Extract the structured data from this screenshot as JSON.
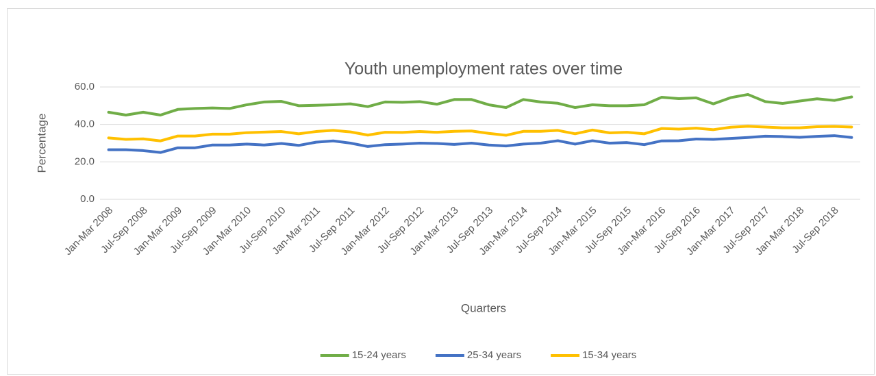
{
  "chart_data": {
    "type": "line",
    "title": "Youth unemployment rates over time",
    "x_label": "Quarters",
    "y_label": "Percentage",
    "categories": [
      "Jan-Mar 2008",
      null,
      "Jul-Sep 2008",
      null,
      "Jan-Mar 2009",
      null,
      "Jul-Sep 2009",
      null,
      "Jan-Mar 2010",
      null,
      "Jul-Sep 2010",
      null,
      "Jan-Mar 2011",
      null,
      "Jul-Sep 2011",
      null,
      "Jan-Mar 2012",
      null,
      "Jul-Sep 2012",
      null,
      "Jan-Mar 2013",
      null,
      "Jul-Sep 2013",
      null,
      "Jan-Mar 2014",
      null,
      "Jul-Sep 2014",
      null,
      "Jan-Mar 2015",
      null,
      "Jul-Sep 2015",
      null,
      "Jan-Mar 2016",
      null,
      "Jul-Sep 2016",
      null,
      "Jan-Mar 2017",
      null,
      "Jul-Sep 2017",
      null,
      "Jan-Mar 2018",
      null,
      "Jul-Sep 2018",
      null
    ],
    "series": [
      {
        "name": "15-24 years",
        "color": "#70ad47",
        "values": [
          46.5,
          45,
          46.5,
          45,
          48,
          48.5,
          48.8,
          48.5,
          50.5,
          52,
          52.3,
          50,
          50.2,
          50.5,
          51,
          49.5,
          52,
          51.8,
          52.2,
          50.8,
          53.3,
          53.3,
          50.5,
          49,
          53.3,
          52,
          51.3,
          49,
          50.5,
          50,
          50,
          50.5,
          54.5,
          53.8,
          54.2,
          51,
          54.3,
          56,
          52.2,
          51.2,
          52.5,
          53.7,
          52.8,
          54.7
        ]
      },
      {
        "name": "25-34 years",
        "color": "#4472c4",
        "values": [
          26.5,
          26.5,
          26,
          25,
          27.5,
          27.5,
          29,
          29,
          29.5,
          29,
          29.8,
          28.8,
          30.5,
          31.2,
          30,
          28.2,
          29.2,
          29.5,
          30,
          29.8,
          29.3,
          30,
          29,
          28.5,
          29.5,
          30,
          31.3,
          29.5,
          31.3,
          30,
          30.3,
          29.2,
          31.2,
          31.3,
          32.2,
          32,
          32.5,
          33,
          33.7,
          33.5,
          33.1,
          33.6,
          34,
          33
        ]
      },
      {
        "name": "15-34 years",
        "color": "#ffc000",
        "values": [
          32.8,
          32,
          32.3,
          31.2,
          33.8,
          33.8,
          34.8,
          34.8,
          35.6,
          35.9,
          36.2,
          35,
          36.2,
          36.8,
          36,
          34.3,
          35.8,
          35.7,
          36.2,
          35.8,
          36.3,
          36.5,
          35.2,
          34.2,
          36.3,
          36.3,
          36.8,
          35,
          37,
          35.5,
          35.8,
          35,
          37.8,
          37.5,
          38,
          37.2,
          38.5,
          39,
          38.6,
          38.2,
          38.2,
          38.8,
          38.9,
          38.6
        ]
      }
    ],
    "ylim": [
      0,
      60
    ],
    "yticks": [
      {
        "value": 0,
        "label": "0.0"
      },
      {
        "value": 20,
        "label": "20.0"
      },
      {
        "value": 40,
        "label": "40.0"
      },
      {
        "value": 60,
        "label": "60.0"
      }
    ],
    "grid": true,
    "legend": "bottom"
  }
}
